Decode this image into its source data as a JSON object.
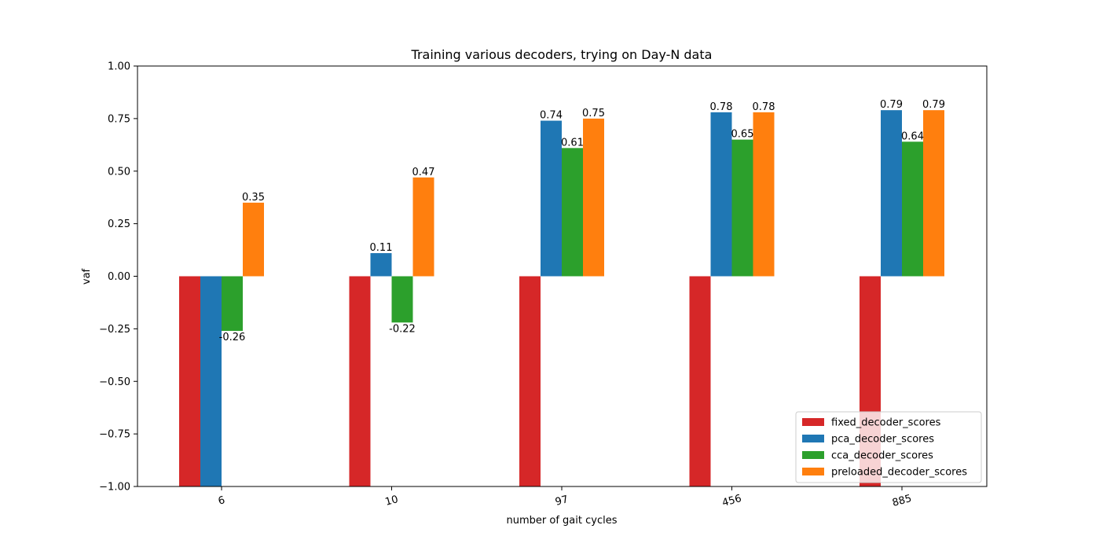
{
  "chart_data": {
    "type": "bar",
    "title": "Training various decoders, trying on Day-N data",
    "xlabel": "number of gait cycles",
    "ylabel": "vaf",
    "categories": [
      "6",
      "10",
      "97",
      "456",
      "885"
    ],
    "ylim": [
      -1.0,
      1.0
    ],
    "yticks": [
      "−1.00",
      "−0.75",
      "−0.50",
      "−0.25",
      "0.00",
      "0.25",
      "0.50",
      "0.75",
      "1.00"
    ],
    "ytick_values": [
      -1.0,
      -0.75,
      -0.5,
      -0.25,
      0.0,
      0.25,
      0.5,
      0.75,
      1.0
    ],
    "series": [
      {
        "name": "fixed_decoder_scores",
        "color": "#d62728",
        "values": [
          -1.0,
          -1.0,
          -1.0,
          -1.0,
          -1.0
        ],
        "labels": [
          "",
          "",
          "",
          "",
          ""
        ]
      },
      {
        "name": "pca_decoder_scores",
        "color": "#1f77b4",
        "values": [
          -1.0,
          0.11,
          0.74,
          0.78,
          0.79
        ],
        "labels": [
          "",
          "0.11",
          "0.74",
          "0.78",
          "0.79"
        ]
      },
      {
        "name": "cca_decoder_scores",
        "color": "#2ca02c",
        "values": [
          -0.26,
          -0.22,
          0.61,
          0.65,
          0.64
        ],
        "labels": [
          "-0.26",
          "-0.22",
          "0.61",
          "0.65",
          "0.64"
        ]
      },
      {
        "name": "preloaded_decoder_scores",
        "color": "#ff7f0e",
        "values": [
          0.35,
          0.47,
          0.75,
          0.78,
          0.79
        ],
        "labels": [
          "0.35",
          "0.47",
          "0.75",
          "0.78",
          "0.79"
        ]
      }
    ],
    "xtick_rotation_deg": -15,
    "legend_position": "lower right",
    "grid": false
  }
}
